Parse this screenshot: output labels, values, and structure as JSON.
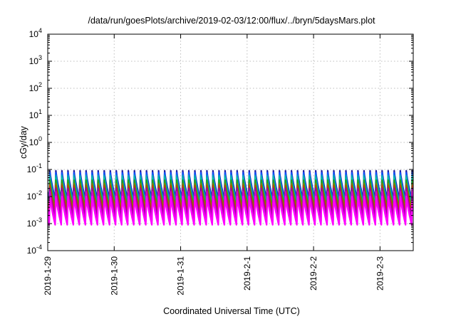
{
  "chart_data": {
    "type": "line",
    "title": "/data/run/goesPlots/archive/2019-02-03/12:00/flux/../bryn/5daysMars.plot",
    "xlabel": "Coordinated Universal Time (UTC)",
    "ylabel": "cGy/day",
    "y_scale": "log",
    "ylim": [
      0.0001,
      10000
    ],
    "y_ticks": [
      {
        "value": 0.0001,
        "mantissa": "10",
        "exp": "-4"
      },
      {
        "value": 0.001,
        "mantissa": "10",
        "exp": "-3"
      },
      {
        "value": 0.01,
        "mantissa": "10",
        "exp": "-2"
      },
      {
        "value": 0.1,
        "mantissa": "10",
        "exp": "-1"
      },
      {
        "value": 1,
        "mantissa": "10",
        "exp": "0"
      },
      {
        "value": 10,
        "mantissa": "10",
        "exp": "1"
      },
      {
        "value": 100,
        "mantissa": "10",
        "exp": "2"
      },
      {
        "value": 1000,
        "mantissa": "10",
        "exp": "3"
      },
      {
        "value": 10000,
        "mantissa": "10",
        "exp": "4"
      }
    ],
    "xlim": [
      "2019-01-29T00:00",
      "2019-02-03T12:00"
    ],
    "x_ticks": [
      "2019-1-29",
      "2019-1-30",
      "2019-1-31",
      "2019-2-1",
      "2019-2-2",
      "2019-2-3"
    ],
    "x_tick_dates": [
      "2019-01-29",
      "2019-01-30",
      "2019-01-31",
      "2019-02-01",
      "2019-02-02",
      "2019-02-03"
    ],
    "grid": true,
    "pattern": {
      "cycles_per_day": 11,
      "note": "sawtooth: each cycle rises abruptly to peak then decays"
    },
    "series": [
      {
        "color": "#2020a0",
        "peak": 0.09,
        "trough": 0.008
      },
      {
        "color": "#1050ff",
        "peak": 0.075,
        "trough": 0.006
      },
      {
        "color": "#00a0c0",
        "peak": 0.06,
        "trough": 0.005
      },
      {
        "color": "#00c0a0",
        "peak": 0.05,
        "trough": 0.0045
      },
      {
        "color": "#20a020",
        "peak": 0.04,
        "trough": 0.004
      },
      {
        "color": "#808000",
        "peak": 0.03,
        "trough": 0.0035
      },
      {
        "color": "#c04000",
        "peak": 0.025,
        "trough": 0.0025
      },
      {
        "color": "#a000a0",
        "peak": 0.02,
        "trough": 0.0018
      },
      {
        "color": "#d000d0",
        "peak": 0.015,
        "trough": 0.0012
      },
      {
        "color": "#ff00ff",
        "peak": 0.01,
        "trough": 0.0009
      }
    ]
  }
}
